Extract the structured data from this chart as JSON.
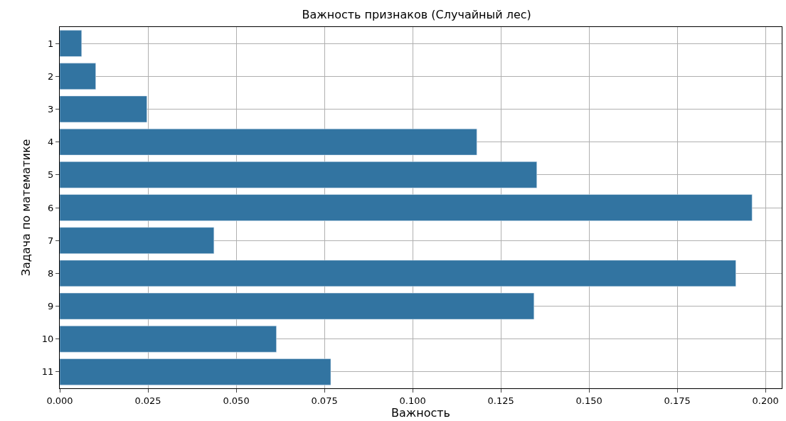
{
  "chart_data": {
    "type": "bar",
    "orientation": "horizontal",
    "title": "Важность признаков (Случайный лес)",
    "xlabel": "Важность",
    "ylabel": "Задача по математике",
    "categories": [
      "1",
      "2",
      "3",
      "4",
      "5",
      "6",
      "7",
      "8",
      "9",
      "10",
      "11"
    ],
    "values": [
      0.0062,
      0.0102,
      0.0247,
      0.1182,
      0.1352,
      0.1962,
      0.0437,
      0.1916,
      0.1344,
      0.0614,
      0.0768
    ],
    "color": "#3274a1",
    "xlim": [
      0,
      0.2046
    ],
    "xticks": [
      {
        "value": 0,
        "label": "0.000"
      },
      {
        "value": 0.025,
        "label": "0.025"
      },
      {
        "value": 0.05,
        "label": "0.050"
      },
      {
        "value": 0.075,
        "label": "0.075"
      },
      {
        "value": 0.1,
        "label": "0.100"
      },
      {
        "value": 0.125,
        "label": "0.125"
      },
      {
        "value": 0.15,
        "label": "0.150"
      },
      {
        "value": 0.175,
        "label": "0.175"
      },
      {
        "value": 0.2,
        "label": "0.200"
      }
    ],
    "grid": true
  }
}
